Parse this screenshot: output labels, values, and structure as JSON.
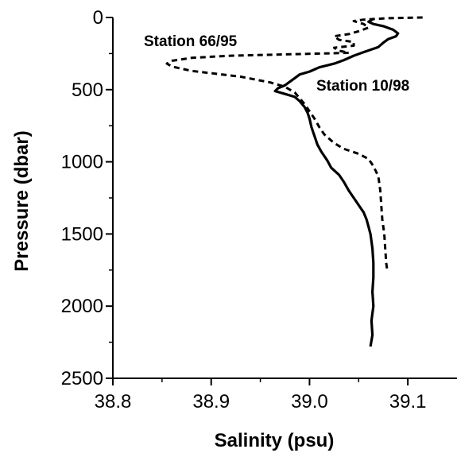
{
  "chart_data": {
    "type": "line",
    "xlabel": "Salinity (psu)",
    "ylabel": "Pressure (dbar)",
    "xlim": [
      38.8,
      39.15
    ],
    "ylim": [
      2500,
      0
    ],
    "y_inverted": true,
    "x_ticks": [
      "38.8",
      "38.9",
      "39.0",
      "39.1"
    ],
    "y_ticks": [
      "0",
      "500",
      "1000",
      "1500",
      "2000",
      "2500"
    ],
    "grid": false,
    "legend": "none",
    "series": [
      {
        "name": "Station 66/95",
        "style": "dashed",
        "points": [
          [
            39.115,
            0
          ],
          [
            39.08,
            5
          ],
          [
            39.055,
            15
          ],
          [
            39.045,
            25
          ],
          [
            39.055,
            45
          ],
          [
            39.06,
            70
          ],
          [
            39.05,
            95
          ],
          [
            39.04,
            115
          ],
          [
            39.025,
            130
          ],
          [
            39.03,
            155
          ],
          [
            39.045,
            170
          ],
          [
            39.045,
            195
          ],
          [
            39.025,
            210
          ],
          [
            39.03,
            230
          ],
          [
            39.04,
            245
          ],
          [
            38.98,
            255
          ],
          [
            38.92,
            265
          ],
          [
            38.88,
            280
          ],
          [
            38.86,
            300
          ],
          [
            38.855,
            320
          ],
          [
            38.86,
            340
          ],
          [
            38.88,
            370
          ],
          [
            38.93,
            410
          ],
          [
            38.96,
            450
          ],
          [
            38.975,
            480
          ],
          [
            38.985,
            520
          ],
          [
            38.99,
            560
          ],
          [
            38.995,
            600
          ],
          [
            39.0,
            650
          ],
          [
            39.005,
            700
          ],
          [
            39.01,
            760
          ],
          [
            39.015,
            810
          ],
          [
            39.025,
            870
          ],
          [
            39.035,
            910
          ],
          [
            39.05,
            945
          ],
          [
            39.06,
            980
          ],
          [
            39.065,
            1030
          ],
          [
            39.07,
            1100
          ],
          [
            39.072,
            1200
          ],
          [
            39.073,
            1300
          ],
          [
            39.074,
            1400
          ],
          [
            39.076,
            1500
          ],
          [
            39.077,
            1600
          ],
          [
            39.078,
            1700
          ],
          [
            39.079,
            1750
          ]
        ]
      },
      {
        "name": "Station 10/98",
        "style": "solid",
        "points": [
          [
            39.065,
            10
          ],
          [
            39.06,
            30
          ],
          [
            39.065,
            45
          ],
          [
            39.075,
            60
          ],
          [
            39.085,
            85
          ],
          [
            39.09,
            110
          ],
          [
            39.088,
            130
          ],
          [
            39.08,
            150
          ],
          [
            39.075,
            175
          ],
          [
            39.07,
            205
          ],
          [
            39.055,
            240
          ],
          [
            39.045,
            265
          ],
          [
            39.035,
            295
          ],
          [
            39.025,
            320
          ],
          [
            39.01,
            345
          ],
          [
            39.0,
            375
          ],
          [
            38.99,
            395
          ],
          [
            38.985,
            420
          ],
          [
            38.98,
            445
          ],
          [
            38.975,
            470
          ],
          [
            38.968,
            490
          ],
          [
            38.965,
            510
          ],
          [
            38.975,
            530
          ],
          [
            38.985,
            550
          ],
          [
            38.99,
            580
          ],
          [
            38.995,
            620
          ],
          [
            38.998,
            660
          ],
          [
            39.0,
            700
          ],
          [
            39.002,
            760
          ],
          [
            39.005,
            820
          ],
          [
            39.008,
            880
          ],
          [
            39.012,
            930
          ],
          [
            39.018,
            990
          ],
          [
            39.022,
            1040
          ],
          [
            39.03,
            1090
          ],
          [
            39.035,
            1140
          ],
          [
            39.04,
            1200
          ],
          [
            39.045,
            1250
          ],
          [
            39.05,
            1300
          ],
          [
            39.055,
            1350
          ],
          [
            39.058,
            1400
          ],
          [
            39.06,
            1450
          ],
          [
            39.062,
            1500
          ],
          [
            39.064,
            1600
          ],
          [
            39.065,
            1700
          ],
          [
            39.065,
            1800
          ],
          [
            39.064,
            1900
          ],
          [
            39.065,
            2000
          ],
          [
            39.063,
            2100
          ],
          [
            39.064,
            2200
          ],
          [
            39.062,
            2280
          ]
        ]
      }
    ]
  }
}
